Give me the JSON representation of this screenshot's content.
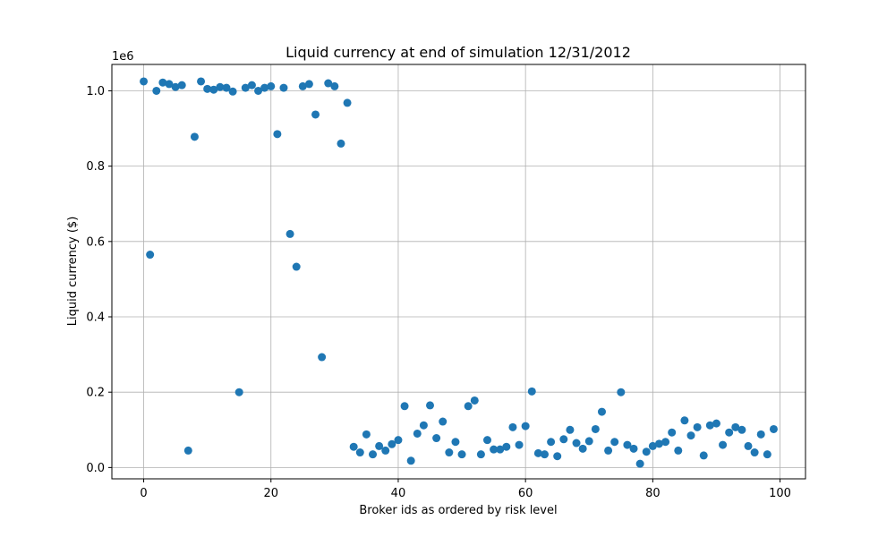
{
  "chart_data": {
    "type": "scatter",
    "title": "Liquid currency at end of simulation 12/31/2012",
    "xlabel": "Broker ids as ordered by risk level",
    "ylabel": "Liquid currency ($)",
    "y_offset_label": "1e6",
    "xlim": [
      -5,
      104
    ],
    "ylim": [
      -0.03,
      1.07
    ],
    "x_ticks": [
      0,
      20,
      40,
      60,
      80,
      100
    ],
    "x_tick_labels": [
      "0",
      "20",
      "40",
      "60",
      "80",
      "100"
    ],
    "y_ticks": [
      0.0,
      0.2,
      0.4,
      0.6,
      0.8,
      1.0
    ],
    "y_tick_labels": [
      "0.0",
      "0.2",
      "0.4",
      "0.6",
      "0.8",
      "1.0"
    ],
    "grid": true,
    "color": "#1f77b4",
    "series": [
      {
        "x": [
          0,
          1,
          2,
          3,
          4,
          5,
          6,
          7,
          8,
          9,
          10,
          11,
          12,
          13,
          14,
          15,
          16,
          17,
          18,
          19,
          20,
          21,
          22,
          23,
          24,
          25,
          26,
          27,
          28,
          29,
          30,
          31,
          32,
          33,
          34,
          35,
          36,
          37,
          38,
          39,
          40,
          41,
          42,
          43,
          44,
          45,
          46,
          47,
          48,
          49,
          50,
          51,
          52,
          53,
          54,
          55,
          56,
          57,
          58,
          59,
          60,
          61,
          62,
          63,
          64,
          65,
          66,
          67,
          68,
          69,
          70,
          71,
          72,
          73,
          74,
          75,
          76,
          77,
          78,
          79,
          80,
          81,
          82,
          83,
          84,
          85,
          86,
          87,
          88,
          89,
          90,
          91,
          92,
          93,
          94,
          95,
          96,
          97,
          98,
          99
        ],
        "y": [
          1.025,
          0.565,
          1.0,
          1.022,
          1.018,
          1.01,
          1.015,
          0.045,
          0.878,
          1.025,
          1.005,
          1.003,
          1.01,
          1.008,
          0.998,
          0.2,
          1.008,
          1.015,
          1.0,
          1.008,
          1.012,
          0.885,
          1.008,
          0.62,
          0.533,
          1.012,
          1.018,
          0.937,
          0.293,
          1.02,
          1.012,
          0.86,
          0.968,
          0.055,
          0.04,
          0.088,
          0.035,
          0.057,
          0.045,
          0.062,
          0.073,
          0.163,
          0.018,
          0.09,
          0.112,
          0.165,
          0.078,
          0.122,
          0.04,
          0.068,
          0.035,
          0.163,
          0.178,
          0.035,
          0.073,
          0.048,
          0.048,
          0.055,
          0.107,
          0.06,
          0.11,
          0.202,
          0.038,
          0.035,
          0.068,
          0.03,
          0.075,
          0.1,
          0.065,
          0.05,
          0.07,
          0.102,
          0.148,
          0.045,
          0.068,
          0.2,
          0.06,
          0.05,
          0.01,
          0.042,
          0.057,
          0.063,
          0.068,
          0.093,
          0.045,
          0.125,
          0.085,
          0.107,
          0.032,
          0.112,
          0.117,
          0.06,
          0.093,
          0.107,
          0.1,
          0.057,
          0.04,
          0.088,
          0.035,
          0.102
        ]
      }
    ]
  }
}
